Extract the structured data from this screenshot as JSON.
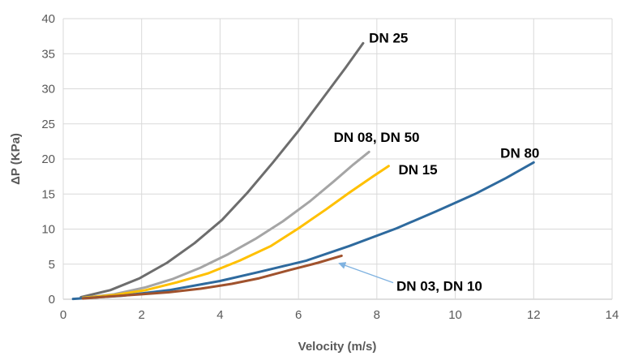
{
  "chart_data": {
    "type": "line",
    "title": "",
    "xlabel": "Velocity (m/s)",
    "ylabel": "ΔP (KPa)",
    "xlim": [
      0,
      14
    ],
    "ylim": [
      0,
      40
    ],
    "xticks": [
      "0",
      "2",
      "4",
      "6",
      "8",
      "10",
      "12",
      "14"
    ],
    "yticks": [
      "0",
      "5",
      "10",
      "15",
      "20",
      "25",
      "30",
      "35",
      "40"
    ],
    "grid": true,
    "colors": {
      "DN 25": "#6d6d6d",
      "DN 08, DN 50": "#a5a5a5",
      "DN 15": "#ffc000",
      "DN 80": "#2e6a9e",
      "DN 03, DN 10": "#a0522d",
      "annotation_arrow": "#7fb2e0",
      "grid": "#d9d9d9"
    },
    "series": [
      {
        "name": "DN 25",
        "x": [
          0.45,
          1.2,
          1.95,
          2.65,
          3.35,
          4.05,
          4.7,
          5.35,
          6.0,
          6.6,
          7.2,
          7.65
        ],
        "y": [
          0.3,
          1.3,
          3.0,
          5.2,
          8.0,
          11.3,
          15.2,
          19.5,
          24.0,
          28.5,
          33.0,
          36.5
        ]
      },
      {
        "name": "DN 08, DN 50",
        "x": [
          0.5,
          1.3,
          2.1,
          2.8,
          3.5,
          4.2,
          4.9,
          5.6,
          6.3,
          6.9,
          7.4,
          7.8
        ],
        "y": [
          0.2,
          0.7,
          1.7,
          2.9,
          4.5,
          6.4,
          8.6,
          11.1,
          14.0,
          16.8,
          19.2,
          21.0
        ]
      },
      {
        "name": "DN 15",
        "x": [
          0.5,
          1.3,
          2.1,
          2.9,
          3.7,
          4.5,
          5.3,
          6.0,
          6.7,
          7.3,
          7.9,
          8.3
        ],
        "y": [
          0.2,
          0.6,
          1.3,
          2.4,
          3.7,
          5.5,
          7.6,
          10.1,
          12.8,
          15.2,
          17.5,
          19.0
        ]
      },
      {
        "name": "DN 80",
        "x": [
          0.25,
          1.5,
          2.7,
          4.0,
          5.0,
          6.2,
          7.3,
          8.5,
          9.5,
          10.5,
          11.3,
          12.0
        ],
        "y": [
          0.05,
          0.5,
          1.3,
          2.6,
          3.9,
          5.5,
          7.6,
          10.1,
          12.5,
          15.0,
          17.3,
          19.5
        ]
      },
      {
        "name": "DN 03, DN 10",
        "x": [
          0.5,
          1.2,
          2.0,
          2.7,
          3.5,
          4.3,
          5.0,
          5.8,
          6.5,
          7.1
        ],
        "y": [
          0.1,
          0.4,
          0.7,
          1.0,
          1.5,
          2.2,
          3.0,
          4.2,
          5.2,
          6.2
        ]
      }
    ],
    "annotations": [
      {
        "text": "DN 25",
        "x": 7.8,
        "y": 36.6
      },
      {
        "text": "DN 08, DN 50",
        "x": 6.9,
        "y": 22.4
      },
      {
        "text": "DN 15",
        "x": 8.55,
        "y": 17.8
      },
      {
        "text": "DN 80",
        "x": 11.15,
        "y": 20.2
      },
      {
        "text": "DN 03, DN 10",
        "x": 8.5,
        "y": 1.2,
        "arrow_to": {
          "x": 7.05,
          "y": 5.1
        }
      }
    ]
  }
}
